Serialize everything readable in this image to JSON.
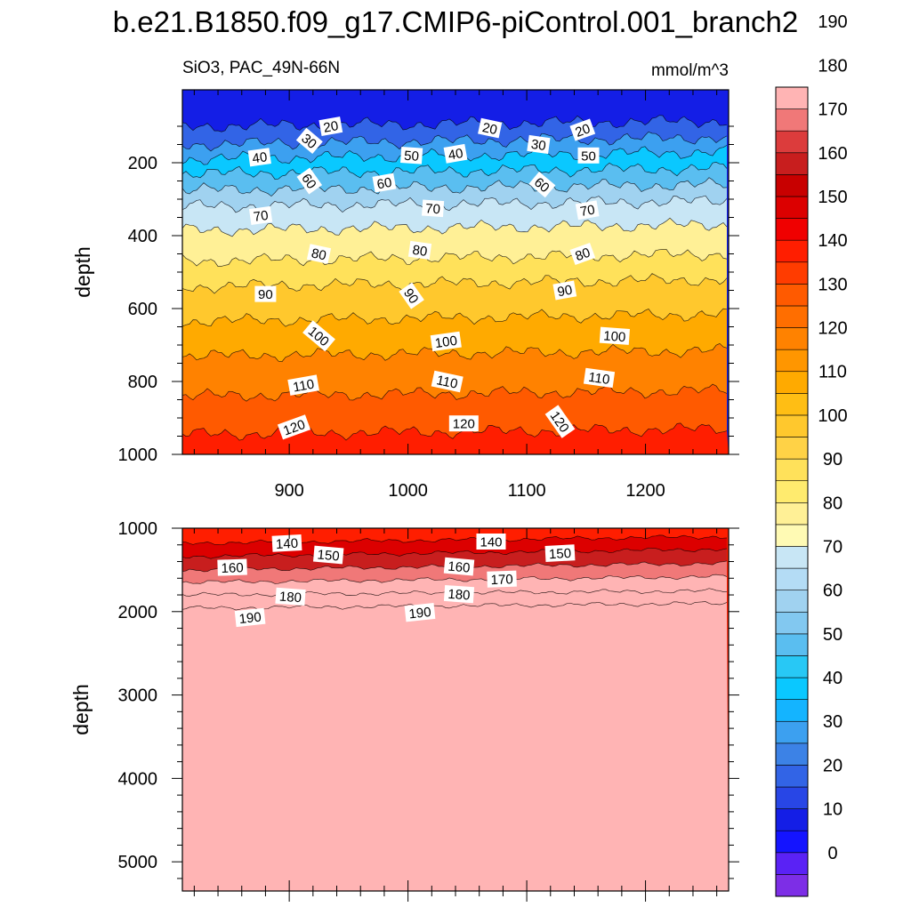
{
  "figure": {
    "title": "b.e21.B1850.f09_g17.CMIP6-piControl.001_branch2",
    "subtitle_left": "SiO3, PAC_49N-66N",
    "subtitle_right": "mmol/m^3"
  },
  "chart_data": [
    {
      "type": "heatmap",
      "panel": "upper",
      "title": "",
      "xlabel": "",
      "ylabel": "depth",
      "xlim": [
        810,
        1270
      ],
      "ylim": [
        1000,
        0
      ],
      "x_ticks": [
        "900",
        "1000",
        "1100",
        "1200"
      ],
      "y_ticks": [
        "200",
        "400",
        "600",
        "800",
        "1000"
      ],
      "contour_levels": [
        10,
        20,
        30,
        40,
        50,
        60,
        70,
        80,
        90,
        100,
        110,
        120,
        130
      ],
      "contour_depths_left": [
        100,
        150,
        190,
        230,
        275,
        320,
        385,
        470,
        540,
        635,
        730,
        840,
        945
      ],
      "contour_depths_right": [
        85,
        130,
        170,
        215,
        260,
        305,
        370,
        450,
        520,
        615,
        715,
        825,
        930
      ],
      "contour_labels": [
        {
          "text": "20",
          "x": 935,
          "depth": 100
        },
        {
          "text": "30",
          "x": 917,
          "depth": 140
        },
        {
          "text": "40",
          "x": 875,
          "depth": 185
        },
        {
          "text": "50",
          "x": 1003,
          "depth": 180
        },
        {
          "text": "40",
          "x": 1040,
          "depth": 175
        },
        {
          "text": "20",
          "x": 1069,
          "depth": 105
        },
        {
          "text": "30",
          "x": 1110,
          "depth": 150
        },
        {
          "text": "20",
          "x": 1147,
          "depth": 110
        },
        {
          "text": "50",
          "x": 1152,
          "depth": 180
        },
        {
          "text": "60",
          "x": 917,
          "depth": 250
        },
        {
          "text": "60",
          "x": 980,
          "depth": 255
        },
        {
          "text": "60",
          "x": 1113,
          "depth": 260
        },
        {
          "text": "70",
          "x": 876,
          "depth": 345
        },
        {
          "text": "70",
          "x": 1021,
          "depth": 325
        },
        {
          "text": "70",
          "x": 1151,
          "depth": 330
        },
        {
          "text": "80",
          "x": 925,
          "depth": 450
        },
        {
          "text": "80",
          "x": 1010,
          "depth": 440
        },
        {
          "text": "80",
          "x": 1147,
          "depth": 450
        },
        {
          "text": "90",
          "x": 880,
          "depth": 560
        },
        {
          "text": "90",
          "x": 1003,
          "depth": 565
        },
        {
          "text": "90",
          "x": 1132,
          "depth": 550
        },
        {
          "text": "100",
          "x": 925,
          "depth": 675
        },
        {
          "text": "100",
          "x": 1032,
          "depth": 690
        },
        {
          "text": "100",
          "x": 1174,
          "depth": 675
        },
        {
          "text": "110",
          "x": 912,
          "depth": 810
        },
        {
          "text": "110",
          "x": 1033,
          "depth": 800
        },
        {
          "text": "110",
          "x": 1161,
          "depth": 790
        },
        {
          "text": "120",
          "x": 904,
          "depth": 925
        },
        {
          "text": "120",
          "x": 1047,
          "depth": 915
        },
        {
          "text": "120",
          "x": 1128,
          "depth": 910
        }
      ]
    },
    {
      "type": "heatmap",
      "panel": "lower",
      "title": "",
      "xlabel": "",
      "ylabel": "depth",
      "xlim": [
        810,
        1270
      ],
      "ylim": [
        5350,
        1000
      ],
      "x_ticks": [],
      "y_ticks": [
        "1000",
        "2000",
        "3000",
        "4000",
        "5000"
      ],
      "contour_levels": [
        140,
        150,
        160,
        170,
        180,
        190
      ],
      "contour_depths_left": [
        1180,
        1340,
        1500,
        1650,
        1800,
        1960
      ],
      "contour_depths_right": [
        1100,
        1250,
        1420,
        1580,
        1750,
        1900
      ],
      "contour_labels": [
        {
          "text": "140",
          "x": 898,
          "depth": 1180
        },
        {
          "text": "150",
          "x": 933,
          "depth": 1320
        },
        {
          "text": "160",
          "x": 852,
          "depth": 1470
        },
        {
          "text": "180",
          "x": 901,
          "depth": 1820
        },
        {
          "text": "190",
          "x": 867,
          "depth": 2070
        },
        {
          "text": "140",
          "x": 1070,
          "depth": 1160
        },
        {
          "text": "150",
          "x": 1128,
          "depth": 1300
        },
        {
          "text": "160",
          "x": 1043,
          "depth": 1460
        },
        {
          "text": "170",
          "x": 1079,
          "depth": 1610
        },
        {
          "text": "180",
          "x": 1043,
          "depth": 1790
        },
        {
          "text": "190",
          "x": 1010,
          "depth": 2010
        }
      ]
    }
  ],
  "colorbar": {
    "labels": [
      "190",
      "180",
      "170",
      "160",
      "150",
      "140",
      "130",
      "120",
      "110",
      "100",
      "90",
      "80",
      "70",
      "60",
      "50",
      "40",
      "30",
      "20",
      "10",
      "0"
    ],
    "colors": [
      "#7d2ee6",
      "#5a22f5",
      "#1414ff",
      "#141ee6",
      "#2846e6",
      "#3264e6",
      "#3c82e6",
      "#3ca0f0",
      "#14b4ff",
      "#0ac8ff",
      "#28c8f5",
      "#5abef0",
      "#82c8f0",
      "#a0d2f0",
      "#b4dcf5",
      "#c8e6f5",
      "#fffab4",
      "#fff096",
      "#ffeb6e",
      "#ffe15a",
      "#ffd246",
      "#ffc82d",
      "#ffbe14",
      "#ffaa00",
      "#ff9600",
      "#ff8200",
      "#ff6e00",
      "#ff5a00",
      "#ff3c00",
      "#ff1e00",
      "#f00000",
      "#dc0000",
      "#c80000",
      "#c81e1e",
      "#dc3c3c",
      "#f07878",
      "#ffb4b4"
    ]
  }
}
